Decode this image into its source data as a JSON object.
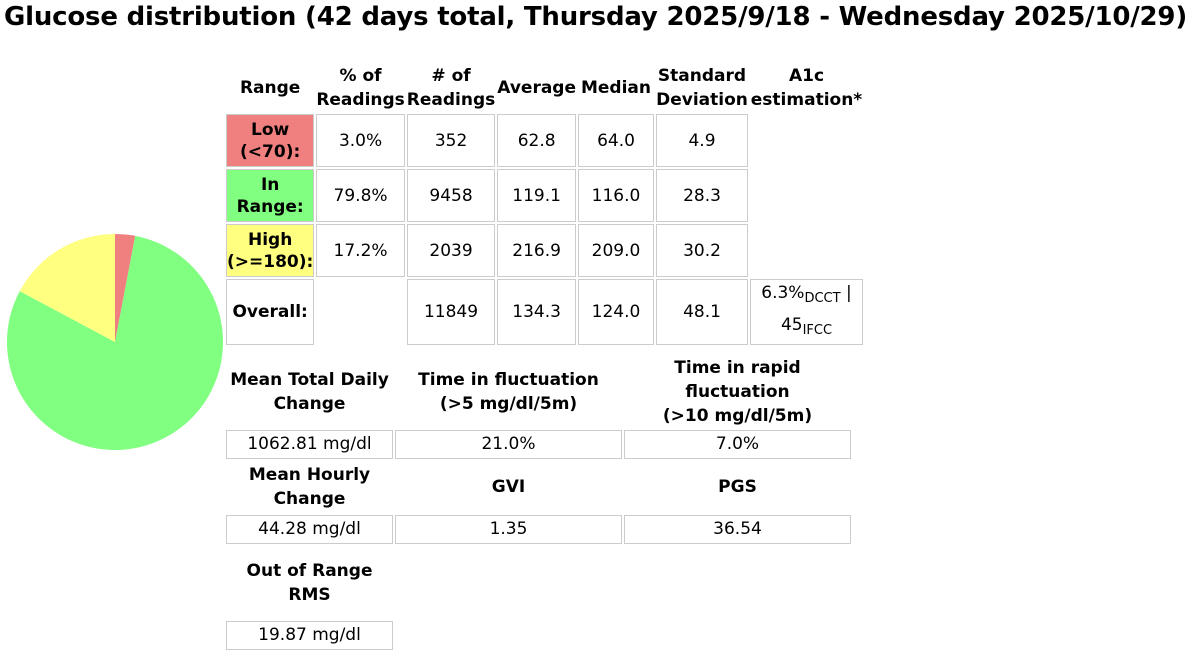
{
  "title": "Glucose distribution (42 days total, Thursday 2025/9/18 - Wednesday 2025/10/29)",
  "chart_data": {
    "type": "pie",
    "slices": [
      {
        "label": "Low (<70):",
        "percent": 3.0,
        "color": "#f08080"
      },
      {
        "label": "In Range:",
        "percent": 79.8,
        "color": "#80ff80"
      },
      {
        "label": "High (>=180):",
        "percent": 17.2,
        "color": "#ffff80"
      }
    ]
  },
  "distribution_table": {
    "headers": {
      "range": "Range",
      "pct_1": "% of",
      "pct_2": "Readings",
      "num_1": "# of",
      "num_2": "Readings",
      "average": "Average",
      "median": "Median",
      "sd_1": "Standard",
      "sd_2": "Deviation",
      "a1c_1": "A1c",
      "a1c_2": "estimation*"
    },
    "rows": [
      {
        "label_1": "Low",
        "label_2": "(<70):",
        "pct": "3.0%",
        "count": "352",
        "average": "62.8",
        "median": "64.0",
        "sd": "4.9",
        "color": "#f08080"
      },
      {
        "label_1": "In",
        "label_2": "Range:",
        "pct": "79.8%",
        "count": "9458",
        "average": "119.1",
        "median": "116.0",
        "sd": "28.3",
        "color": "#80ff80"
      },
      {
        "label_1": "High",
        "label_2": "(>=180):",
        "pct": "17.2%",
        "count": "2039",
        "average": "216.9",
        "median": "209.0",
        "sd": "30.2",
        "color": "#ffff80"
      }
    ],
    "overall": {
      "label": "Overall:",
      "count": "11849",
      "average": "134.3",
      "median": "124.0",
      "sd": "48.1",
      "a1c_dcct": "6.3%",
      "a1c_dcct_sub": "DCCT",
      "a1c_sep": " |",
      "a1c_ifcc": "45",
      "a1c_ifcc_sub": "IFCC"
    }
  },
  "variability": {
    "row1": {
      "h1_1": "Mean Total Daily",
      "h1_2": "Change",
      "v1": "1062.81 mg/dl",
      "h2_1": "Time in fluctuation",
      "h2_2": "(>5 mg/dl/5m)",
      "v2": "21.0%",
      "h3_1": "Time in rapid",
      "h3_2": "fluctuation",
      "h3_3": "(>10 mg/dl/5m)",
      "v3": "7.0%"
    },
    "row2": {
      "h1_1": "Mean Hourly",
      "h1_2": "Change",
      "v1": "44.28 mg/dl",
      "h2": "GVI",
      "v2": "1.35",
      "h3": "PGS",
      "v3": "36.54"
    },
    "row3": {
      "h1_1": "Out of Range",
      "h1_2": "RMS",
      "v1": "19.87 mg/dl"
    }
  }
}
